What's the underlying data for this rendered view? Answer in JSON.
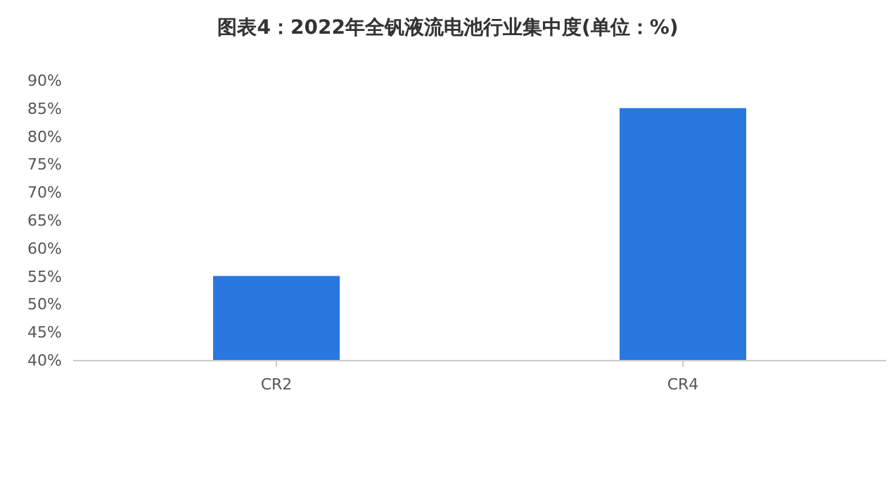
{
  "chart_data": {
    "type": "bar",
    "title": "图表4：2022年全钒液流电池行业集中度(单位：%)",
    "categories": [
      "CR2",
      "CR4"
    ],
    "values": [
      55,
      85
    ],
    "color": "#2878e0",
    "ylim": [
      40,
      90
    ],
    "yticks": [
      {
        "value": 40,
        "label": "40%"
      },
      {
        "value": 45,
        "label": "45%"
      },
      {
        "value": 50,
        "label": "50%"
      },
      {
        "value": 55,
        "label": "55%"
      },
      {
        "value": 60,
        "label": "60%"
      },
      {
        "value": 65,
        "label": "65%"
      },
      {
        "value": 70,
        "label": "70%"
      },
      {
        "value": 75,
        "label": "75%"
      },
      {
        "value": 80,
        "label": "80%"
      },
      {
        "value": 85,
        "label": "85%"
      },
      {
        "value": 90,
        "label": "90%"
      }
    ],
    "grid": false,
    "legend": false
  }
}
